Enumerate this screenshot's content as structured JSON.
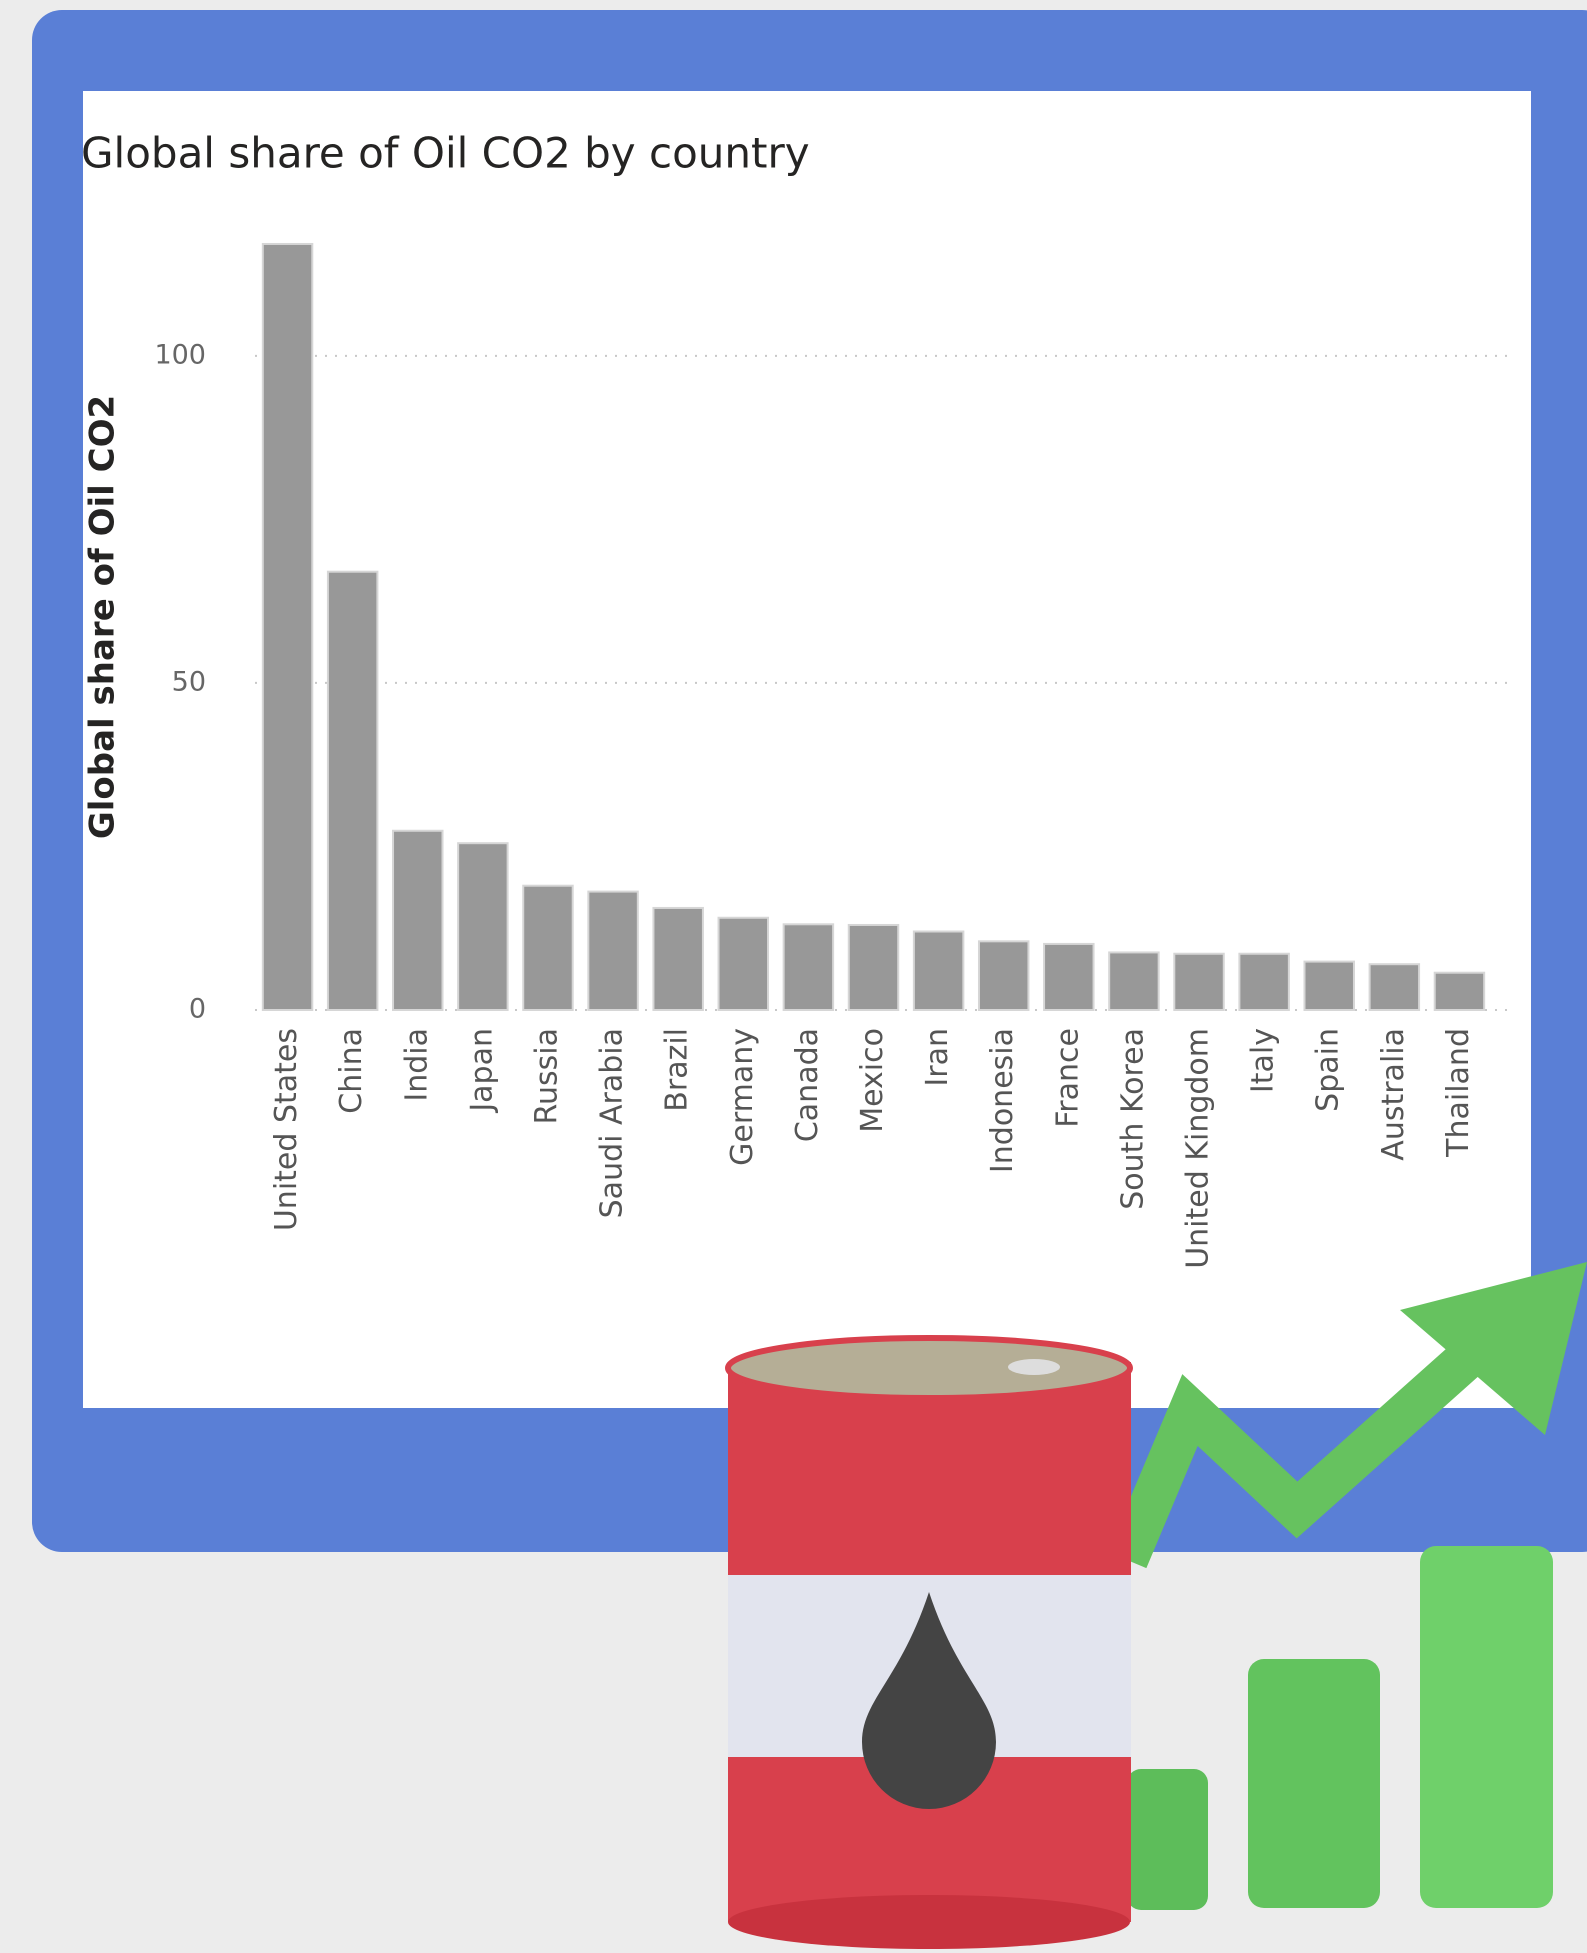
{
  "chart_data": {
    "type": "bar",
    "title": "Global share of Oil CO2 by country",
    "y_label": "Global share of Oil CO2",
    "categories": [
      "United States",
      "China",
      "India",
      "Japan",
      "Russia",
      "Saudi Arabia",
      "Brazil",
      "Germany",
      "Canada",
      "Mexico",
      "Iran",
      "Indonesia",
      "France",
      "South Korea",
      "United Kingdom",
      "Italy",
      "Spain",
      "Australia",
      "Thailand"
    ],
    "values": [
      117.1,
      67.0,
      27.4,
      25.5,
      19.0,
      18.1,
      15.6,
      14.1,
      13.1,
      13.0,
      12.0,
      10.5,
      10.1,
      8.8,
      8.6,
      8.6,
      7.4,
      7.0,
      5.7
    ],
    "color": "#989898",
    "ylim": [
      0,
      120
    ],
    "yticks": [
      0,
      50,
      100
    ],
    "grid": true
  }
}
